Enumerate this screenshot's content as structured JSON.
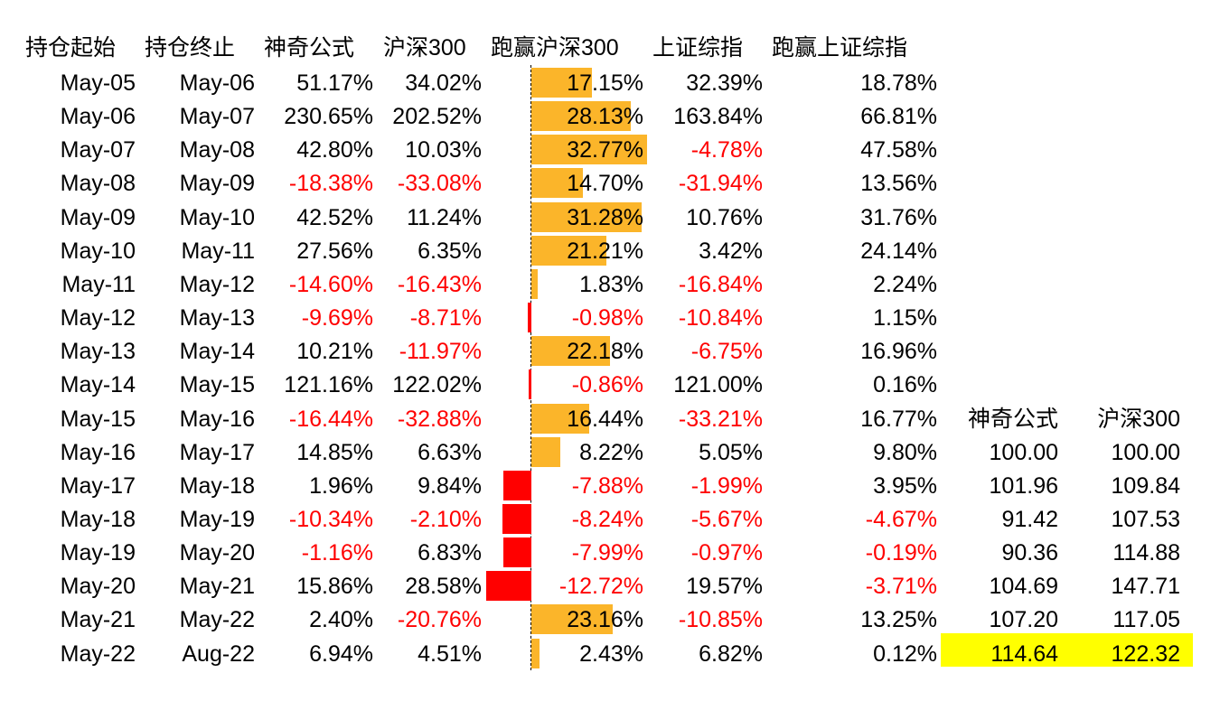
{
  "headers": [
    "持仓起始",
    "持仓终止",
    "神奇公式",
    "沪深300",
    "跑赢沪深300",
    "上证综指",
    "跑赢上证综指"
  ],
  "rows": [
    [
      "May-05",
      "May-06",
      "51.17%",
      "34.02%",
      "17.15%",
      "32.39%",
      "18.78%"
    ],
    [
      "May-06",
      "May-07",
      "230.65%",
      "202.52%",
      "28.13%",
      "163.84%",
      "66.81%"
    ],
    [
      "May-07",
      "May-08",
      "42.80%",
      "10.03%",
      "32.77%",
      "-4.78%",
      "47.58%"
    ],
    [
      "May-08",
      "May-09",
      "-18.38%",
      "-33.08%",
      "14.70%",
      "-31.94%",
      "13.56%"
    ],
    [
      "May-09",
      "May-10",
      "42.52%",
      "11.24%",
      "31.28%",
      "10.76%",
      "31.76%"
    ],
    [
      "May-10",
      "May-11",
      "27.56%",
      "6.35%",
      "21.21%",
      "3.42%",
      "24.14%"
    ],
    [
      "May-11",
      "May-12",
      "-14.60%",
      "-16.43%",
      "1.83%",
      "-16.84%",
      "2.24%"
    ],
    [
      "May-12",
      "May-13",
      "-9.69%",
      "-8.71%",
      "-0.98%",
      "-10.84%",
      "1.15%"
    ],
    [
      "May-13",
      "May-14",
      "10.21%",
      "-11.97%",
      "22.18%",
      "-6.75%",
      "16.96%"
    ],
    [
      "May-14",
      "May-15",
      "121.16%",
      "122.02%",
      "-0.86%",
      "121.00%",
      "0.16%"
    ],
    [
      "May-15",
      "May-16",
      "-16.44%",
      "-32.88%",
      "16.44%",
      "-33.21%",
      "16.77%"
    ],
    [
      "May-16",
      "May-17",
      "14.85%",
      "6.63%",
      "8.22%",
      "5.05%",
      "9.80%"
    ],
    [
      "May-17",
      "May-18",
      "1.96%",
      "9.84%",
      "-7.88%",
      "-1.99%",
      "3.95%"
    ],
    [
      "May-18",
      "May-19",
      "-10.34%",
      "-2.10%",
      "-8.24%",
      "-5.67%",
      "-4.67%"
    ],
    [
      "May-19",
      "May-20",
      "-1.16%",
      "6.83%",
      "-7.99%",
      "-0.97%",
      "-0.19%"
    ],
    [
      "May-20",
      "May-21",
      "15.86%",
      "28.58%",
      "-12.72%",
      "19.57%",
      "-3.71%"
    ],
    [
      "May-21",
      "May-22",
      "2.40%",
      "-20.76%",
      "23.16%",
      "-10.85%",
      "13.25%"
    ],
    [
      "May-22",
      "Aug-22",
      "6.94%",
      "4.51%",
      "2.43%",
      "6.82%",
      "0.12%"
    ]
  ],
  "index_table": {
    "headers": [
      "神奇公式",
      "沪深300"
    ],
    "rows": [
      [
        "100.00",
        "100.00"
      ],
      [
        "101.96",
        "109.84"
      ],
      [
        "91.42",
        "107.53"
      ],
      [
        "90.36",
        "114.88"
      ],
      [
        "104.69",
        "147.71"
      ],
      [
        "107.20",
        "117.05"
      ],
      [
        "114.64",
        "122.32"
      ]
    ]
  },
  "colors": {
    "positive_bar": "#fbb52a",
    "negative_bar": "#ff0000",
    "negative_text": "#ff0000",
    "highlight": "#ffff00"
  }
}
